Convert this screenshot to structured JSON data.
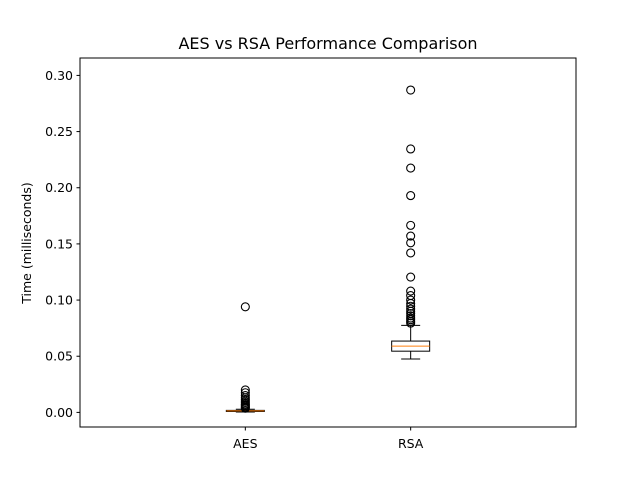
{
  "chart_data": {
    "type": "box",
    "title": "AES vs RSA Performance Comparison",
    "xlabel": "",
    "ylabel": "Time (milliseconds)",
    "ylim": [
      -0.013,
      0.3155
    ],
    "yticks": [
      0.0,
      0.05,
      0.1,
      0.15,
      0.2,
      0.25,
      0.3
    ],
    "ytick_labels": [
      "0.00",
      "0.05",
      "0.10",
      "0.15",
      "0.20",
      "0.25",
      "0.30"
    ],
    "grid": false,
    "categories": [
      "AES",
      "RSA"
    ],
    "boxes": [
      {
        "name": "AES",
        "whisker_low": 0.0003,
        "q1": 0.0008,
        "median": 0.0013,
        "q3": 0.0018,
        "whisker_high": 0.0028,
        "outliers": [
          0.094,
          0.02,
          0.0175,
          0.015,
          0.013,
          0.0115,
          0.01,
          0.0088,
          0.0075,
          0.0065,
          0.0055,
          0.0045,
          0.0037
        ]
      },
      {
        "name": "RSA",
        "whisker_low": 0.0475,
        "q1": 0.0545,
        "median": 0.059,
        "q3": 0.0635,
        "whisker_high": 0.0775,
        "outliers": [
          0.287,
          0.2345,
          0.2175,
          0.193,
          0.1665,
          0.157,
          0.151,
          0.142,
          0.1205,
          0.108,
          0.104,
          0.1,
          0.097,
          0.0945,
          0.092,
          0.09,
          0.088,
          0.086,
          0.084,
          0.0825,
          0.081,
          0.0795
        ]
      }
    ],
    "colors": {
      "box": "#000000",
      "median": "#ff7f0e",
      "flier": "#000000"
    }
  }
}
